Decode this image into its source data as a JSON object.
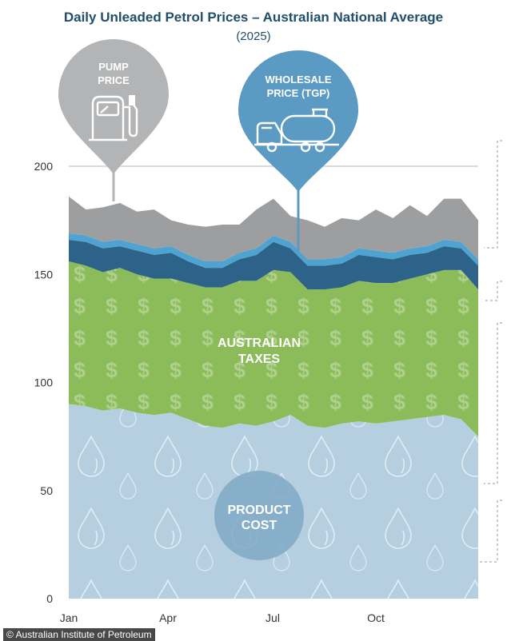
{
  "chart_data": {
    "type": "area",
    "title": "Daily Unleaded Petrol Prices – Australian National Average",
    "subtitle": "(2025)",
    "xlabel": "",
    "ylabel": "",
    "ylim": [
      0,
      200
    ],
    "yticks": [
      0,
      50,
      100,
      150,
      200
    ],
    "xtick_labels": [
      "Jan",
      "Apr",
      "Jul",
      "Oct"
    ],
    "x": [
      "Jan-01",
      "Jan-15",
      "Feb-01",
      "Feb-15",
      "Mar-01",
      "Mar-15",
      "Apr-01",
      "Apr-15",
      "May-01",
      "May-15",
      "Jun-01",
      "Jun-15",
      "Jul-01",
      "Jul-15",
      "Aug-01",
      "Aug-15",
      "Sep-01",
      "Sep-15",
      "Oct-01",
      "Oct-15",
      "Nov-01",
      "Nov-15",
      "Dec-01",
      "Dec-15",
      "Dec-31"
    ],
    "series": [
      {
        "name": "PRODUCT COST",
        "color": "#b5cfe0",
        "values": [
          90,
          89,
          87,
          88,
          86,
          85,
          86,
          83,
          80,
          79,
          81,
          80,
          82,
          85,
          80,
          79,
          81,
          82,
          81,
          82,
          83,
          84,
          85,
          83,
          75
        ]
      },
      {
        "name": "AUSTRALIAN TAXES",
        "color": "#8cbc5a",
        "values": [
          66,
          65,
          64,
          65,
          64,
          63,
          62,
          63,
          64,
          65,
          66,
          67,
          70,
          66,
          63,
          64,
          63,
          65,
          65,
          64,
          65,
          66,
          67,
          69,
          68
        ]
      },
      {
        "name": "WHOLESALE PRICE (TGP)",
        "color": "#2d6389",
        "values": [
          10,
          11,
          11,
          10,
          11,
          11,
          12,
          10,
          9,
          9,
          10,
          12,
          13,
          11,
          11,
          11,
          11,
          12,
          12,
          11,
          11,
          10,
          11,
          10,
          11
        ]
      },
      {
        "name": "",
        "color": "#4fa3d1",
        "values": [
          3,
          3,
          3,
          3,
          3,
          3,
          3,
          3,
          3,
          3,
          3,
          3,
          3,
          3,
          3,
          3,
          3,
          3,
          3,
          3,
          3,
          3,
          3,
          3,
          3
        ]
      },
      {
        "name": "PUMP PRICE",
        "color": "#9d9e9f",
        "values": [
          17,
          12,
          16,
          17,
          15,
          18,
          12,
          14,
          16,
          17,
          13,
          18,
          17,
          12,
          18,
          15,
          18,
          13,
          19,
          16,
          20,
          14,
          19,
          20,
          18
        ]
      }
    ],
    "annotations": [
      {
        "label": "PUMP PRICE",
        "icon": "fuel-pump-icon",
        "color": "#b3b4b5"
      },
      {
        "label": "WHOLESALE PRICE (TGP)",
        "icon": "fuel-tanker-icon",
        "color": "#5b9ac2"
      },
      {
        "label": "AUSTRALIAN TAXES",
        "icon": "dollar-sign-icon",
        "color": "#8cbc5a"
      },
      {
        "label": "PRODUCT COST",
        "icon": "oil-droplet-icon",
        "color": "#7fa9c6"
      }
    ]
  },
  "source": "© Australian Institute of Petroleum"
}
